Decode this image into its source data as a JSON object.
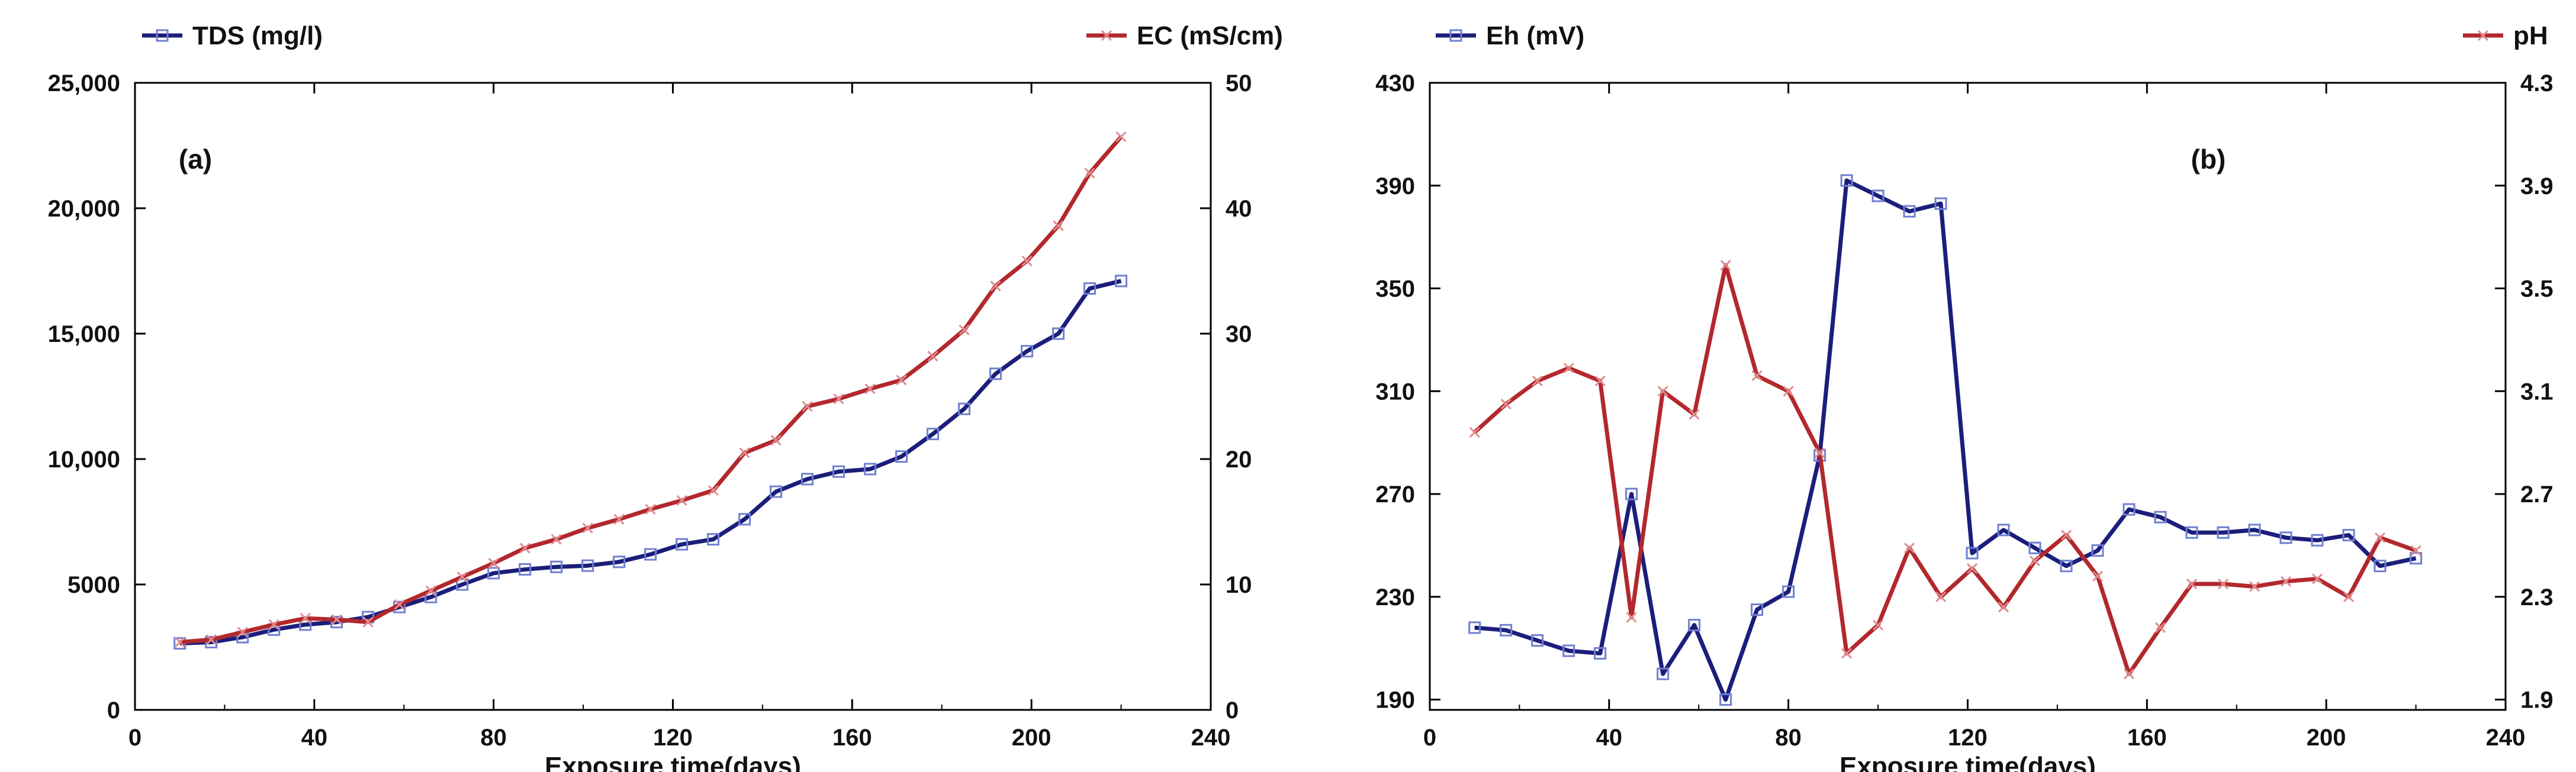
{
  "colors": {
    "series_blue": "#1b1e7a",
    "series_red": "#b3282d",
    "axis": "#000000"
  },
  "chart_data": [
    {
      "panel": "a",
      "type": "line",
      "panel_label": "(a)",
      "xlabel": "Exposure time(days)",
      "xlim": [
        0,
        240
      ],
      "x_ticks": [
        "0",
        "40",
        "80",
        "120",
        "160",
        "200",
        "240"
      ],
      "left_axis": {
        "ylim": [
          0,
          25000
        ],
        "ticks": [
          "0",
          "5000",
          "10,000",
          "15,000",
          "20,000",
          "25,000"
        ]
      },
      "right_axis": {
        "ylim": [
          0,
          50
        ],
        "ticks": [
          "0",
          "10",
          "20",
          "30",
          "40",
          "50"
        ]
      },
      "series": [
        {
          "name": "TDS (mg/l)",
          "axis": "left",
          "color": "#1b1e7a",
          "marker": "square",
          "x": [
            10,
            17,
            24,
            31,
            38,
            45,
            52,
            59,
            66,
            73,
            80,
            87,
            94,
            101,
            108,
            115,
            122,
            129,
            136,
            143,
            150,
            157,
            164,
            171,
            178,
            185,
            192,
            199,
            206,
            213,
            220
          ],
          "values": [
            2650,
            2700,
            2900,
            3200,
            3400,
            3500,
            3700,
            4100,
            4500,
            5000,
            5450,
            5600,
            5700,
            5750,
            5900,
            6200,
            6600,
            6800,
            7600,
            8700,
            9200,
            9500,
            9600,
            10100,
            11000,
            12000,
            13400,
            14300,
            15000,
            16800,
            17100
          ]
        },
        {
          "name": "EC (mS/cm)",
          "axis": "right",
          "color": "#b3282d",
          "marker": "x",
          "x": [
            10,
            17,
            24,
            31,
            38,
            45,
            52,
            59,
            66,
            73,
            80,
            87,
            94,
            101,
            108,
            115,
            122,
            129,
            136,
            143,
            150,
            157,
            164,
            171,
            178,
            185,
            192,
            199,
            206,
            213,
            220
          ],
          "values": [
            5.4,
            5.6,
            6.2,
            6.8,
            7.3,
            7.2,
            7.0,
            8.4,
            9.5,
            10.6,
            11.7,
            12.9,
            13.6,
            14.5,
            15.2,
            16.0,
            16.7,
            17.5,
            20.5,
            21.5,
            24.2,
            24.8,
            25.6,
            26.3,
            28.2,
            30.3,
            33.8,
            35.8,
            38.6,
            42.8,
            45.7
          ]
        }
      ]
    },
    {
      "panel": "b",
      "type": "line",
      "panel_label": "(b)",
      "xlabel": "Exposure time(days)",
      "xlim": [
        0,
        240
      ],
      "x_ticks": [
        "0",
        "40",
        "80",
        "120",
        "160",
        "200",
        "240"
      ],
      "left_axis": {
        "ylim": [
          186,
          430
        ],
        "ticks": [
          "190",
          "230",
          "270",
          "310",
          "350",
          "390",
          "430"
        ]
      },
      "right_axis": {
        "ylim": [
          1.86,
          4.3
        ],
        "ticks": [
          "1.9",
          "2.3",
          "2.7",
          "3.1",
          "3.5",
          "3.9",
          "4.3"
        ]
      },
      "series": [
        {
          "name": "Eh (mV)",
          "axis": "left",
          "color": "#1b1e7a",
          "marker": "square",
          "x": [
            10,
            17,
            24,
            31,
            38,
            45,
            52,
            59,
            66,
            73,
            80,
            87,
            93,
            100,
            107,
            114,
            121,
            128,
            135,
            142,
            149,
            156,
            163,
            170,
            177,
            184,
            191,
            198,
            205,
            212,
            220
          ],
          "values": [
            218,
            217,
            213,
            209,
            208,
            270,
            200,
            219,
            190,
            225,
            232,
            285,
            392,
            386,
            380,
            383,
            247,
            256,
            249,
            242,
            248,
            264,
            261,
            255,
            255,
            256,
            253,
            252,
            254,
            242,
            245
          ]
        },
        {
          "name": "pH",
          "axis": "right",
          "color": "#b3282d",
          "marker": "x",
          "x": [
            10,
            17,
            24,
            31,
            38,
            45,
            52,
            59,
            66,
            73,
            80,
            87,
            93,
            100,
            107,
            114,
            121,
            128,
            135,
            142,
            149,
            156,
            163,
            170,
            177,
            184,
            191,
            198,
            205,
            212,
            220
          ],
          "values": [
            2.94,
            3.05,
            3.14,
            3.19,
            3.14,
            2.22,
            3.1,
            3.01,
            3.59,
            3.16,
            3.1,
            2.86,
            2.08,
            2.19,
            2.49,
            2.3,
            2.41,
            2.26,
            2.44,
            2.54,
            2.38,
            2.0,
            2.18,
            2.35,
            2.35,
            2.34,
            2.36,
            2.37,
            2.3,
            2.53,
            2.48
          ]
        }
      ]
    }
  ]
}
